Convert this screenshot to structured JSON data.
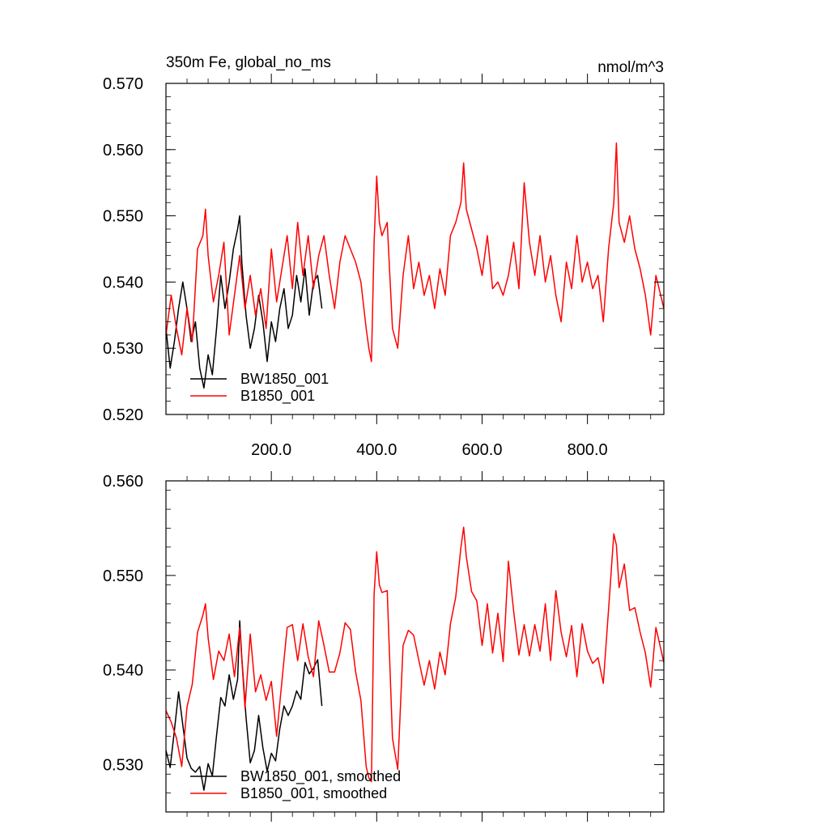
{
  "chart_data": [
    {
      "type": "line",
      "title": "350m Fe, global_no_ms",
      "units": "nmol/m^3",
      "xlabel": "",
      "ylabel": "",
      "xlim": [
        0,
        945
      ],
      "ylim": [
        0.52,
        0.57
      ],
      "yticks": [
        0.52,
        0.53,
        0.54,
        0.55,
        0.56,
        0.57
      ],
      "ytick_labels": [
        "0.520",
        "0.530",
        "0.540",
        "0.550",
        "0.560",
        "0.570"
      ],
      "xticks": [
        200,
        400,
        600,
        800
      ],
      "xtick_labels": [
        "200.0",
        "400.0",
        "600.0",
        "800.0"
      ],
      "grid": false,
      "legend": "bottom-left",
      "series": [
        {
          "name": "BW1850_001",
          "color": "#000000",
          "x": [
            0,
            8,
            16,
            24,
            32,
            40,
            48,
            56,
            64,
            72,
            80,
            88,
            96,
            104,
            112,
            120,
            128,
            136,
            140,
            144,
            152,
            160,
            168,
            176,
            184,
            192,
            200,
            208,
            216,
            224,
            232,
            240,
            248,
            256,
            264,
            272,
            280,
            288,
            296
          ],
          "y": [
            0.533,
            0.527,
            0.531,
            0.536,
            0.54,
            0.536,
            0.531,
            0.534,
            0.527,
            0.524,
            0.529,
            0.526,
            0.533,
            0.541,
            0.536,
            0.54,
            0.545,
            0.548,
            0.55,
            0.543,
            0.535,
            0.53,
            0.533,
            0.538,
            0.534,
            0.528,
            0.534,
            0.531,
            0.536,
            0.539,
            0.533,
            0.535,
            0.541,
            0.537,
            0.542,
            0.535,
            0.54,
            0.541,
            0.536
          ]
        },
        {
          "name": "B1850_001",
          "color": "#ff0000",
          "x": [
            0,
            10,
            20,
            30,
            40,
            50,
            60,
            70,
            75,
            80,
            90,
            100,
            110,
            120,
            130,
            140,
            150,
            160,
            170,
            180,
            190,
            200,
            210,
            220,
            230,
            240,
            250,
            260,
            270,
            280,
            290,
            300,
            310,
            320,
            330,
            340,
            350,
            360,
            370,
            380,
            385,
            390,
            395,
            400,
            405,
            410,
            420,
            430,
            440,
            450,
            460,
            470,
            480,
            490,
            500,
            510,
            520,
            530,
            540,
            550,
            560,
            565,
            570,
            580,
            590,
            600,
            610,
            620,
            630,
            640,
            650,
            660,
            670,
            680,
            690,
            700,
            710,
            720,
            730,
            740,
            750,
            760,
            770,
            780,
            790,
            800,
            810,
            820,
            830,
            840,
            850,
            855,
            860,
            870,
            880,
            890,
            900,
            910,
            920,
            930,
            945
          ],
          "y": [
            0.532,
            0.538,
            0.533,
            0.529,
            0.536,
            0.531,
            0.545,
            0.547,
            0.551,
            0.544,
            0.537,
            0.541,
            0.546,
            0.532,
            0.538,
            0.544,
            0.536,
            0.541,
            0.535,
            0.539,
            0.533,
            0.545,
            0.537,
            0.542,
            0.547,
            0.539,
            0.549,
            0.541,
            0.547,
            0.539,
            0.544,
            0.547,
            0.541,
            0.536,
            0.543,
            0.547,
            0.545,
            0.543,
            0.54,
            0.533,
            0.53,
            0.528,
            0.546,
            0.556,
            0.549,
            0.547,
            0.549,
            0.533,
            0.53,
            0.541,
            0.547,
            0.539,
            0.543,
            0.538,
            0.541,
            0.536,
            0.542,
            0.538,
            0.547,
            0.549,
            0.552,
            0.558,
            0.551,
            0.548,
            0.545,
            0.541,
            0.547,
            0.539,
            0.54,
            0.538,
            0.541,
            0.546,
            0.539,
            0.555,
            0.546,
            0.541,
            0.547,
            0.54,
            0.544,
            0.538,
            0.534,
            0.543,
            0.539,
            0.547,
            0.54,
            0.543,
            0.539,
            0.541,
            0.534,
            0.545,
            0.552,
            0.561,
            0.549,
            0.546,
            0.55,
            0.545,
            0.542,
            0.538,
            0.532,
            0.541,
            0.536
          ]
        }
      ]
    },
    {
      "type": "line",
      "title": "",
      "xlabel": "",
      "ylabel": "",
      "xlim": [
        0,
        945
      ],
      "ylim": [
        0.525,
        0.56
      ],
      "yticks": [
        0.53,
        0.54,
        0.55,
        0.56
      ],
      "ytick_labels": [
        "0.530",
        "0.540",
        "0.550",
        "0.560"
      ],
      "xticks": [
        200,
        400,
        600,
        800
      ],
      "xtick_labels": [],
      "grid": false,
      "legend": "bottom-left",
      "series": [
        {
          "name": "BW1850_001, smoothed",
          "color": "#000000",
          "x": [
            0,
            8,
            16,
            24,
            32,
            40,
            48,
            56,
            64,
            72,
            80,
            88,
            96,
            104,
            112,
            120,
            128,
            136,
            140,
            144,
            152,
            160,
            168,
            176,
            184,
            192,
            200,
            208,
            216,
            224,
            232,
            240,
            248,
            256,
            264,
            272,
            280,
            288,
            296
          ],
          "y": [
            0.5315,
            0.5297,
            0.5336,
            0.5377,
            0.5342,
            0.5307,
            0.5296,
            0.5292,
            0.5298,
            0.5273,
            0.5301,
            0.5288,
            0.5331,
            0.5371,
            0.5362,
            0.5395,
            0.5369,
            0.539,
            0.5452,
            0.5413,
            0.535,
            0.5302,
            0.5315,
            0.5352,
            0.5318,
            0.5293,
            0.5312,
            0.5304,
            0.5338,
            0.5362,
            0.5352,
            0.5362,
            0.5378,
            0.5369,
            0.5408,
            0.5396,
            0.5402,
            0.5411,
            0.5362
          ]
        },
        {
          "name": "B1850_001, smoothed",
          "color": "#ff0000",
          "x": [
            0,
            10,
            20,
            30,
            40,
            50,
            60,
            70,
            75,
            80,
            90,
            100,
            110,
            120,
            130,
            140,
            150,
            160,
            170,
            180,
            190,
            200,
            210,
            220,
            230,
            240,
            250,
            260,
            270,
            280,
            290,
            300,
            310,
            320,
            330,
            340,
            350,
            360,
            370,
            380,
            385,
            390,
            395,
            400,
            405,
            410,
            420,
            430,
            440,
            450,
            460,
            470,
            480,
            490,
            500,
            510,
            520,
            530,
            540,
            550,
            560,
            565,
            570,
            580,
            590,
            600,
            610,
            620,
            630,
            640,
            650,
            660,
            670,
            680,
            690,
            700,
            710,
            720,
            730,
            740,
            750,
            760,
            770,
            780,
            790,
            800,
            810,
            820,
            830,
            840,
            850,
            855,
            860,
            870,
            880,
            890,
            900,
            910,
            920,
            930,
            945
          ],
          "y": [
            0.5357,
            0.5345,
            0.5328,
            0.5298,
            0.5361,
            0.5385,
            0.544,
            0.5458,
            0.547,
            0.5434,
            0.539,
            0.542,
            0.541,
            0.5438,
            0.5393,
            0.5445,
            0.536,
            0.5438,
            0.5377,
            0.5395,
            0.5368,
            0.5388,
            0.533,
            0.5388,
            0.5445,
            0.5448,
            0.541,
            0.5449,
            0.5414,
            0.5393,
            0.5452,
            0.5426,
            0.5398,
            0.5398,
            0.5418,
            0.545,
            0.5443,
            0.5398,
            0.5368,
            0.5298,
            0.5286,
            0.5282,
            0.548,
            0.5525,
            0.549,
            0.5482,
            0.5484,
            0.5328,
            0.5295,
            0.5426,
            0.5442,
            0.5437,
            0.541,
            0.5384,
            0.541,
            0.538,
            0.5419,
            0.5395,
            0.5449,
            0.5477,
            0.553,
            0.5551,
            0.552,
            0.5483,
            0.5473,
            0.5426,
            0.547,
            0.5418,
            0.546,
            0.5409,
            0.5515,
            0.5462,
            0.5416,
            0.5448,
            0.5415,
            0.5448,
            0.542,
            0.547,
            0.541,
            0.5484,
            0.544,
            0.5414,
            0.5447,
            0.5393,
            0.5449,
            0.542,
            0.5407,
            0.5413,
            0.5386,
            0.5464,
            0.5544,
            0.5532,
            0.5487,
            0.5512,
            0.5463,
            0.5466,
            0.544,
            0.5418,
            0.5382,
            0.5445,
            0.5408
          ]
        }
      ]
    }
  ]
}
